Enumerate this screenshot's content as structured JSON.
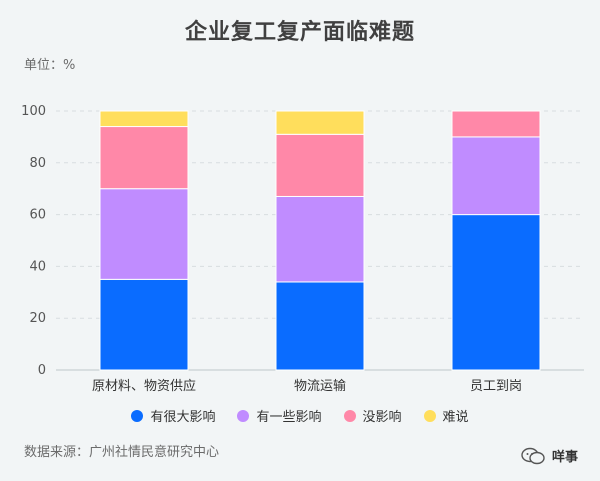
{
  "chart_data": {
    "type": "bar",
    "stacked": true,
    "title": "企业复工复产面临难题",
    "unit_label": "单位：%",
    "categories": [
      "原材料、物资供应",
      "物流运输",
      "员工到岗"
    ],
    "series": [
      {
        "name": "有很大影响",
        "color": "#0a6cff",
        "values": [
          35,
          34,
          60
        ]
      },
      {
        "name": "有一些影响",
        "color": "#c08cff",
        "values": [
          35,
          33,
          30
        ]
      },
      {
        "name": "没影响",
        "color": "#ff88a8",
        "values": [
          24,
          24,
          10
        ]
      },
      {
        "name": "难说",
        "color": "#ffde5c",
        "values": [
          6,
          9,
          0
        ]
      }
    ],
    "yticks": [
      0,
      20,
      40,
      60,
      80,
      100
    ],
    "ylim": [
      0,
      100
    ],
    "grid": true,
    "legend_position": "bottom"
  },
  "source_text": "数据来源：广州社情民意研究中心",
  "watermark": {
    "text": "咩事",
    "icon": "wechat-icon"
  }
}
